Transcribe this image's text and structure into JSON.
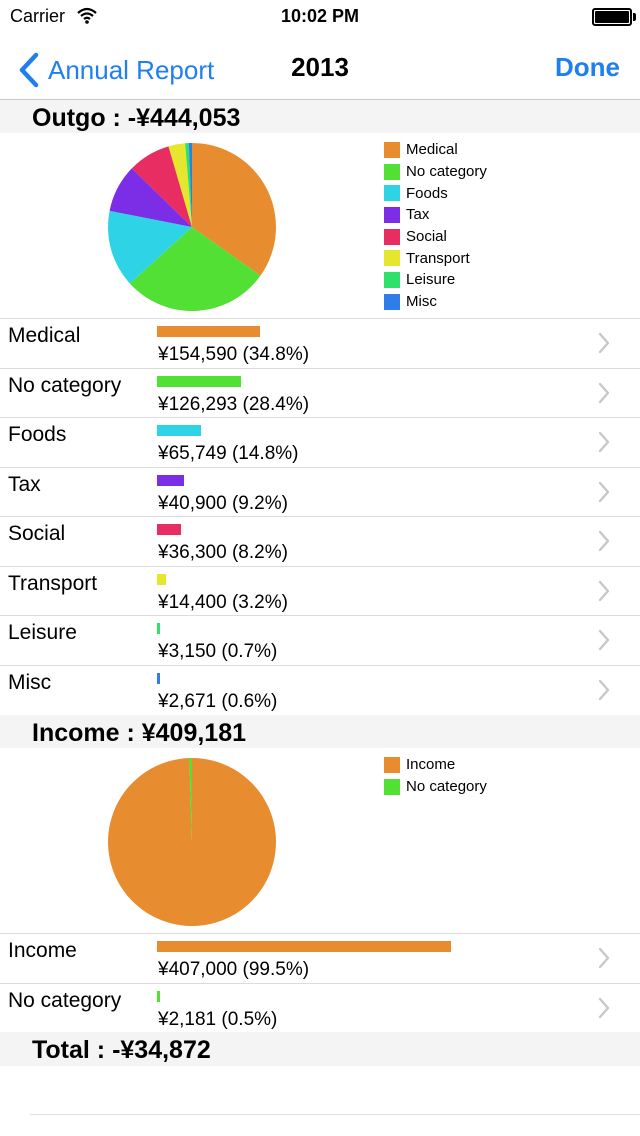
{
  "status_bar": {
    "carrier": "Carrier",
    "time": "10:02 PM"
  },
  "nav": {
    "back_label": "Annual Report",
    "title": "2013",
    "done_label": "Done"
  },
  "outgo": {
    "header": "Outgo : -¥444,053",
    "items": [
      {
        "name": "Medical",
        "amount": "¥154,590 (34.8%)",
        "pct": 34.8,
        "color": "#e88c30"
      },
      {
        "name": "No category",
        "amount": "¥126,293 (28.4%)",
        "pct": 28.4,
        "color": "#52e034"
      },
      {
        "name": "Foods",
        "amount": "¥65,749 (14.8%)",
        "pct": 14.8,
        "color": "#2fd3e6"
      },
      {
        "name": "Tax",
        "amount": "¥40,900 (9.2%)",
        "pct": 9.2,
        "color": "#7b2ee6"
      },
      {
        "name": "Social",
        "amount": "¥36,300 (8.2%)",
        "pct": 8.2,
        "color": "#e82d62"
      },
      {
        "name": "Transport",
        "amount": "¥14,400 (3.2%)",
        "pct": 3.2,
        "color": "#e6e62e"
      },
      {
        "name": "Leisure",
        "amount": "¥3,150 (0.7%)",
        "pct": 0.7,
        "color": "#2fe06a"
      },
      {
        "name": "Misc",
        "amount": "¥2,671 (0.6%)",
        "pct": 0.6,
        "color": "#2f7de6"
      }
    ]
  },
  "income": {
    "header": "Income : ¥409,181",
    "items": [
      {
        "name": "Income",
        "amount": "¥407,000 (99.5%)",
        "pct": 99.5,
        "color": "#e88c30"
      },
      {
        "name": "No category",
        "amount": "¥2,181 (0.5%)",
        "pct": 0.5,
        "color": "#52e034"
      }
    ]
  },
  "total": {
    "label": "Total : -¥34,872"
  }
}
